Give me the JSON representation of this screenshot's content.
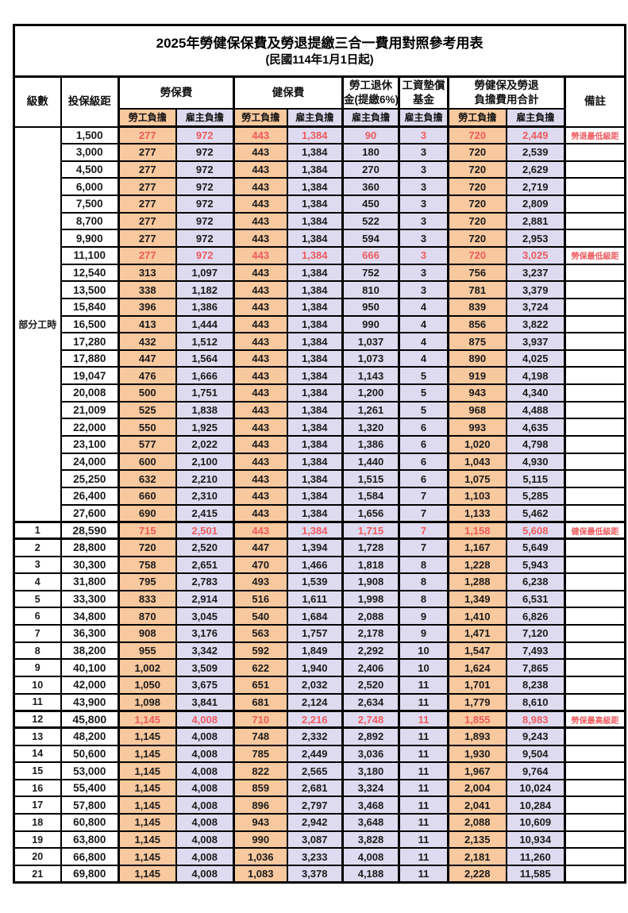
{
  "title": "2025年勞健保保費及勞退提繳三合一費用對照參考用表",
  "subtitle": "(民國114年1月1日起)",
  "header": {
    "level": "級數",
    "bracket": "投保級距",
    "labor_ins": "勞保費",
    "health_ins": "健保費",
    "pension_line1": "勞工退休",
    "pension_line2": "金(提繳6%)",
    "wage_fund_line1": "工資墊償",
    "wage_fund_line2": "基金",
    "total_line1": "勞健保及勞退",
    "total_line2": "負擔費用合計",
    "remark": "備註",
    "employee_share": "勞工負擔",
    "employer_share": "雇主負擔"
  },
  "colors": {
    "employee_bg": "#F8C89E",
    "employer_bg": "#DEDBF0",
    "highlight_text": "#EE5A5E",
    "border": "#000000"
  },
  "part_time_label": "部分工時",
  "value_col_pattern": [
    "ee",
    "er",
    "ee",
    "er",
    "er",
    "er",
    "ee",
    "er"
  ],
  "rows": [
    {
      "level": "部分工時",
      "span": 23,
      "pt": true,
      "bracket": "1,500",
      "v": [
        "277",
        "972",
        "443",
        "1,384",
        "90",
        "3",
        "720",
        "2,449"
      ],
      "remark": "勞退最低級距",
      "hl": true,
      "thick": false
    },
    {
      "level": null,
      "bracket": "3,000",
      "v": [
        "277",
        "972",
        "443",
        "1,384",
        "180",
        "3",
        "720",
        "2,539"
      ],
      "remark": "",
      "hl": false,
      "thick": false
    },
    {
      "level": null,
      "bracket": "4,500",
      "v": [
        "277",
        "972",
        "443",
        "1,384",
        "270",
        "3",
        "720",
        "2,629"
      ],
      "remark": "",
      "hl": false,
      "thick": false
    },
    {
      "level": null,
      "bracket": "6,000",
      "v": [
        "277",
        "972",
        "443",
        "1,384",
        "360",
        "3",
        "720",
        "2,719"
      ],
      "remark": "",
      "hl": false,
      "thick": false
    },
    {
      "level": null,
      "bracket": "7,500",
      "v": [
        "277",
        "972",
        "443",
        "1,384",
        "450",
        "3",
        "720",
        "2,809"
      ],
      "remark": "",
      "hl": false,
      "thick": false
    },
    {
      "level": null,
      "bracket": "8,700",
      "v": [
        "277",
        "972",
        "443",
        "1,384",
        "522",
        "3",
        "720",
        "2,881"
      ],
      "remark": "",
      "hl": false,
      "thick": false
    },
    {
      "level": null,
      "bracket": "9,900",
      "v": [
        "277",
        "972",
        "443",
        "1,384",
        "594",
        "3",
        "720",
        "2,953"
      ],
      "remark": "",
      "hl": false,
      "thick": false
    },
    {
      "level": null,
      "bracket": "11,100",
      "v": [
        "277",
        "972",
        "443",
        "1,384",
        "666",
        "3",
        "720",
        "3,025"
      ],
      "remark": "勞保最低級距",
      "hl": true,
      "thick": false
    },
    {
      "level": null,
      "bracket": "12,540",
      "v": [
        "313",
        "1,097",
        "443",
        "1,384",
        "752",
        "3",
        "756",
        "3,237"
      ],
      "remark": "",
      "hl": false,
      "thick": false
    },
    {
      "level": null,
      "bracket": "13,500",
      "v": [
        "338",
        "1,182",
        "443",
        "1,384",
        "810",
        "3",
        "781",
        "3,379"
      ],
      "remark": "",
      "hl": false,
      "thick": false
    },
    {
      "level": null,
      "bracket": "15,840",
      "v": [
        "396",
        "1,386",
        "443",
        "1,384",
        "950",
        "4",
        "839",
        "3,724"
      ],
      "remark": "",
      "hl": false,
      "thick": false
    },
    {
      "level": null,
      "bracket": "16,500",
      "v": [
        "413",
        "1,444",
        "443",
        "1,384",
        "990",
        "4",
        "856",
        "3,822"
      ],
      "remark": "",
      "hl": false,
      "thick": false
    },
    {
      "level": null,
      "bracket": "17,280",
      "v": [
        "432",
        "1,512",
        "443",
        "1,384",
        "1,037",
        "4",
        "875",
        "3,937"
      ],
      "remark": "",
      "hl": false,
      "thick": false
    },
    {
      "level": null,
      "bracket": "17,880",
      "v": [
        "447",
        "1,564",
        "443",
        "1,384",
        "1,073",
        "4",
        "890",
        "4,025"
      ],
      "remark": "",
      "hl": false,
      "thick": false
    },
    {
      "level": null,
      "bracket": "19,047",
      "v": [
        "476",
        "1,666",
        "443",
        "1,384",
        "1,143",
        "5",
        "919",
        "4,198"
      ],
      "remark": "",
      "hl": false,
      "thick": false
    },
    {
      "level": null,
      "bracket": "20,008",
      "v": [
        "500",
        "1,751",
        "443",
        "1,384",
        "1,200",
        "5",
        "943",
        "4,340"
      ],
      "remark": "",
      "hl": false,
      "thick": false
    },
    {
      "level": null,
      "bracket": "21,009",
      "v": [
        "525",
        "1,838",
        "443",
        "1,384",
        "1,261",
        "5",
        "968",
        "4,488"
      ],
      "remark": "",
      "hl": false,
      "thick": false
    },
    {
      "level": null,
      "bracket": "22,000",
      "v": [
        "550",
        "1,925",
        "443",
        "1,384",
        "1,320",
        "6",
        "993",
        "4,635"
      ],
      "remark": "",
      "hl": false,
      "thick": false
    },
    {
      "level": null,
      "bracket": "23,100",
      "v": [
        "577",
        "2,022",
        "443",
        "1,384",
        "1,386",
        "6",
        "1,020",
        "4,798"
      ],
      "remark": "",
      "hl": false,
      "thick": false
    },
    {
      "level": null,
      "bracket": "24,000",
      "v": [
        "600",
        "2,100",
        "443",
        "1,384",
        "1,440",
        "6",
        "1,043",
        "4,930"
      ],
      "remark": "",
      "hl": false,
      "thick": false
    },
    {
      "level": null,
      "bracket": "25,250",
      "v": [
        "632",
        "2,210",
        "443",
        "1,384",
        "1,515",
        "6",
        "1,075",
        "5,115"
      ],
      "remark": "",
      "hl": false,
      "thick": false
    },
    {
      "level": null,
      "bracket": "26,400",
      "v": [
        "660",
        "2,310",
        "443",
        "1,384",
        "1,584",
        "7",
        "1,103",
        "5,285"
      ],
      "remark": "",
      "hl": false,
      "thick": false
    },
    {
      "level": null,
      "bracket": "27,600",
      "v": [
        "690",
        "2,415",
        "443",
        "1,384",
        "1,656",
        "7",
        "1,133",
        "5,462"
      ],
      "remark": "",
      "hl": false,
      "thick": false
    },
    {
      "level": "1",
      "bracket": "28,590",
      "v": [
        "715",
        "2,501",
        "443",
        "1,384",
        "1,715",
        "7",
        "1,158",
        "5,608"
      ],
      "remark": "健保最低級距",
      "hl": true,
      "thick": true
    },
    {
      "level": "2",
      "bracket": "28,800",
      "v": [
        "720",
        "2,520",
        "447",
        "1,394",
        "1,728",
        "7",
        "1,167",
        "5,649"
      ],
      "remark": "",
      "hl": false,
      "thick": false
    },
    {
      "level": "3",
      "bracket": "30,300",
      "v": [
        "758",
        "2,651",
        "470",
        "1,466",
        "1,818",
        "8",
        "1,228",
        "5,943"
      ],
      "remark": "",
      "hl": false,
      "thick": false
    },
    {
      "level": "4",
      "bracket": "31,800",
      "v": [
        "795",
        "2,783",
        "493",
        "1,539",
        "1,908",
        "8",
        "1,288",
        "6,238"
      ],
      "remark": "",
      "hl": false,
      "thick": false
    },
    {
      "level": "5",
      "bracket": "33,300",
      "v": [
        "833",
        "2,914",
        "516",
        "1,611",
        "1,998",
        "8",
        "1,349",
        "6,531"
      ],
      "remark": "",
      "hl": false,
      "thick": false
    },
    {
      "level": "6",
      "bracket": "34,800",
      "v": [
        "870",
        "3,045",
        "540",
        "1,684",
        "2,088",
        "9",
        "1,410",
        "6,826"
      ],
      "remark": "",
      "hl": false,
      "thick": false
    },
    {
      "level": "7",
      "bracket": "36,300",
      "v": [
        "908",
        "3,176",
        "563",
        "1,757",
        "2,178",
        "9",
        "1,471",
        "7,120"
      ],
      "remark": "",
      "hl": false,
      "thick": false
    },
    {
      "level": "8",
      "bracket": "38,200",
      "v": [
        "955",
        "3,342",
        "592",
        "1,849",
        "2,292",
        "10",
        "1,547",
        "7,493"
      ],
      "remark": "",
      "hl": false,
      "thick": false
    },
    {
      "level": "9",
      "bracket": "40,100",
      "v": [
        "1,002",
        "3,509",
        "622",
        "1,940",
        "2,406",
        "10",
        "1,624",
        "7,865"
      ],
      "remark": "",
      "hl": false,
      "thick": false
    },
    {
      "level": "10",
      "bracket": "42,000",
      "v": [
        "1,050",
        "3,675",
        "651",
        "2,032",
        "2,520",
        "11",
        "1,701",
        "8,238"
      ],
      "remark": "",
      "hl": false,
      "thick": false
    },
    {
      "level": "11",
      "bracket": "43,900",
      "v": [
        "1,098",
        "3,841",
        "681",
        "2,124",
        "2,634",
        "11",
        "1,779",
        "8,610"
      ],
      "remark": "",
      "hl": false,
      "thick": false
    },
    {
      "level": "12",
      "bracket": "45,800",
      "v": [
        "1,145",
        "4,008",
        "710",
        "2,216",
        "2,748",
        "11",
        "1,855",
        "8,983"
      ],
      "remark": "勞保最高級距",
      "hl": true,
      "thick": true
    },
    {
      "level": "13",
      "bracket": "48,200",
      "v": [
        "1,145",
        "4,008",
        "748",
        "2,332",
        "2,892",
        "11",
        "1,893",
        "9,243"
      ],
      "remark": "",
      "hl": false,
      "thick": false
    },
    {
      "level": "14",
      "bracket": "50,600",
      "v": [
        "1,145",
        "4,008",
        "785",
        "2,449",
        "3,036",
        "11",
        "1,930",
        "9,504"
      ],
      "remark": "",
      "hl": false,
      "thick": false
    },
    {
      "level": "15",
      "bracket": "53,000",
      "v": [
        "1,145",
        "4,008",
        "822",
        "2,565",
        "3,180",
        "11",
        "1,967",
        "9,764"
      ],
      "remark": "",
      "hl": false,
      "thick": false
    },
    {
      "level": "16",
      "bracket": "55,400",
      "v": [
        "1,145",
        "4,008",
        "859",
        "2,681",
        "3,324",
        "11",
        "2,004",
        "10,024"
      ],
      "remark": "",
      "hl": false,
      "thick": false
    },
    {
      "level": "17",
      "bracket": "57,800",
      "v": [
        "1,145",
        "4,008",
        "896",
        "2,797",
        "3,468",
        "11",
        "2,041",
        "10,284"
      ],
      "remark": "",
      "hl": false,
      "thick": false
    },
    {
      "level": "18",
      "bracket": "60,800",
      "v": [
        "1,145",
        "4,008",
        "943",
        "2,942",
        "3,648",
        "11",
        "2,088",
        "10,609"
      ],
      "remark": "",
      "hl": false,
      "thick": false
    },
    {
      "level": "19",
      "bracket": "63,800",
      "v": [
        "1,145",
        "4,008",
        "990",
        "3,087",
        "3,828",
        "11",
        "2,135",
        "10,934"
      ],
      "remark": "",
      "hl": false,
      "thick": false
    },
    {
      "level": "20",
      "bracket": "66,800",
      "v": [
        "1,145",
        "4,008",
        "1,036",
        "3,233",
        "4,008",
        "11",
        "2,181",
        "11,260"
      ],
      "remark": "",
      "hl": false,
      "thick": false
    },
    {
      "level": "21",
      "bracket": "69,800",
      "v": [
        "1,145",
        "4,008",
        "1,083",
        "3,378",
        "4,188",
        "11",
        "2,228",
        "11,585"
      ],
      "remark": "",
      "hl": false,
      "thick": false
    }
  ]
}
